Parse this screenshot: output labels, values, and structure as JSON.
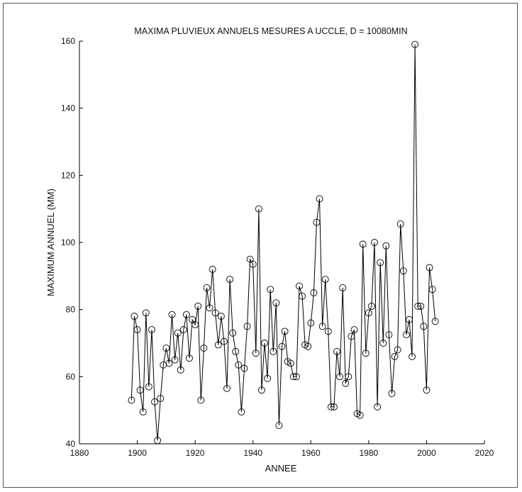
{
  "chart_data": {
    "type": "line",
    "title": "MAXIMA PLUVIEUX ANNUELS MESURES A UCCLE, D = 10080MIN",
    "xlabel": "ANNEE",
    "ylabel": "MAXIMUM ANNUEL (MM)",
    "xlim": [
      1880,
      2020
    ],
    "ylim": [
      40,
      160
    ],
    "xticks": [
      1880,
      1900,
      1920,
      1940,
      1960,
      1980,
      2000,
      2020
    ],
    "yticks": [
      40,
      60,
      80,
      100,
      120,
      140,
      160
    ],
    "grid": false,
    "line_color": "#000000",
    "marker": "open-circle",
    "series": [
      {
        "x": [
          1898,
          1899,
          1900,
          1901,
          1902,
          1903,
          1904,
          1905,
          1906,
          1907,
          1908,
          1909,
          1910,
          1911,
          1912,
          1913,
          1914,
          1915,
          1916,
          1917,
          1918,
          1919,
          1920,
          1921,
          1922,
          1923,
          1924,
          1925,
          1926,
          1927,
          1928,
          1929,
          1930,
          1931,
          1932,
          1933,
          1934,
          1935,
          1936,
          1937,
          1938,
          1939,
          1940,
          1941,
          1942,
          1943,
          1944,
          1945,
          1946,
          1947,
          1948,
          1949,
          1950,
          1951,
          1952,
          1953,
          1954,
          1955,
          1956,
          1957,
          1958,
          1959,
          1960,
          1961,
          1962,
          1963,
          1964,
          1965,
          1966,
          1967,
          1968,
          1969,
          1970,
          1971,
          1972,
          1973,
          1974,
          1975,
          1976,
          1977,
          1978,
          1979,
          1980,
          1981,
          1982,
          1983,
          1984,
          1985,
          1986,
          1987,
          1988,
          1989,
          1990,
          1991,
          1992,
          1993,
          1994,
          1995,
          1996,
          1997,
          1998,
          1999,
          2000,
          2001,
          2002,
          2003
        ],
        "y": [
          53,
          78,
          74,
          56,
          49.5,
          79,
          57,
          74,
          52.5,
          41,
          53.5,
          63.5,
          68.5,
          64,
          78.5,
          65,
          73,
          62,
          74,
          78.5,
          65.5,
          77,
          75.5,
          81,
          53,
          68.5,
          86.5,
          80.5,
          92,
          79,
          69.5,
          78,
          70.5,
          56.5,
          89,
          73,
          67.5,
          63.5,
          49.5,
          62.5,
          75,
          95,
          93.5,
          67,
          110,
          56,
          70,
          59.5,
          86,
          67.5,
          82,
          45.5,
          69,
          73.5,
          64.5,
          64,
          60,
          60,
          87,
          84,
          69.5,
          69,
          76,
          85,
          106,
          113,
          75,
          89,
          73.5,
          51,
          51,
          67.5,
          60,
          86.5,
          58,
          60,
          72,
          74,
          49,
          48.5,
          99.5,
          67,
          79,
          81,
          100,
          51,
          94,
          70,
          99,
          72.5,
          55,
          66,
          68,
          105.5,
          91.5,
          72.5,
          77,
          66,
          159,
          81,
          81,
          75,
          56,
          92.5,
          86,
          76.5
        ]
      }
    ]
  }
}
